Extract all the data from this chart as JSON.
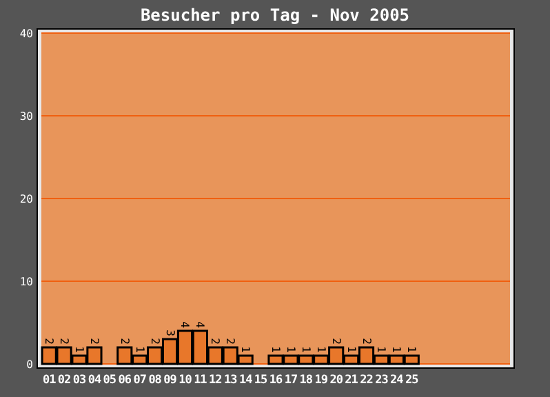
{
  "chart_data": {
    "type": "bar",
    "title": "Besucher pro Tag - Nov 2005",
    "categories": [
      "01",
      "02",
      "03",
      "04",
      "05",
      "06",
      "07",
      "08",
      "09",
      "10",
      "11",
      "12",
      "13",
      "14",
      "15",
      "16",
      "17",
      "18",
      "19",
      "20",
      "21",
      "22",
      "23",
      "24",
      "25",
      null,
      null,
      null,
      null,
      null,
      null
    ],
    "values": [
      2,
      2,
      1,
      2,
      0,
      2,
      1,
      2,
      3,
      4,
      4,
      2,
      2,
      1,
      0,
      1,
      1,
      1,
      1,
      2,
      1,
      2,
      1,
      1,
      1,
      null,
      null,
      null,
      null,
      null,
      null
    ],
    "value_labels": [
      "2",
      "2",
      "1",
      "2",
      null,
      "2",
      "1",
      "2",
      "3",
      "4",
      "4",
      "2",
      "2",
      "1",
      null,
      "1",
      "1",
      "1",
      "1",
      "2",
      "1",
      "2",
      "1",
      "1",
      "1",
      null,
      null,
      null,
      null,
      null,
      null
    ],
    "color": "#e8772a",
    "ylim": [
      0,
      40
    ],
    "yticks": [
      0,
      10,
      20,
      30,
      40
    ],
    "grid": "y"
  }
}
